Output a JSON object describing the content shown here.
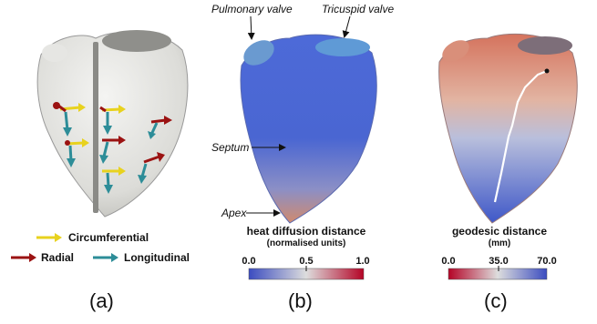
{
  "panel_a": {
    "label": "(a)",
    "legend": {
      "circumferential": "Circumferential",
      "radial": "Radial",
      "longitudinal": "Longitudinal"
    },
    "colors": {
      "circumferential": "#e8d21e",
      "radial": "#9b1212",
      "longitudinal": "#2d8d98"
    }
  },
  "panel_b": {
    "label": "(b)",
    "annotations": {
      "pulmonary": "Pulmonary valve",
      "tricuspid": "Tricuspid valve",
      "septum": "Septum",
      "apex": "Apex"
    },
    "colorbar": {
      "title": "heat diffusion distance",
      "subtitle": "(normalised units)",
      "ticks": [
        "0.0",
        "0.5",
        "1.0"
      ]
    }
  },
  "panel_c": {
    "label": "(c)",
    "colorbar": {
      "title": "geodesic distance",
      "subtitle": "(mm)",
      "ticks": [
        "0.0",
        "35.0",
        "70.0"
      ]
    }
  }
}
